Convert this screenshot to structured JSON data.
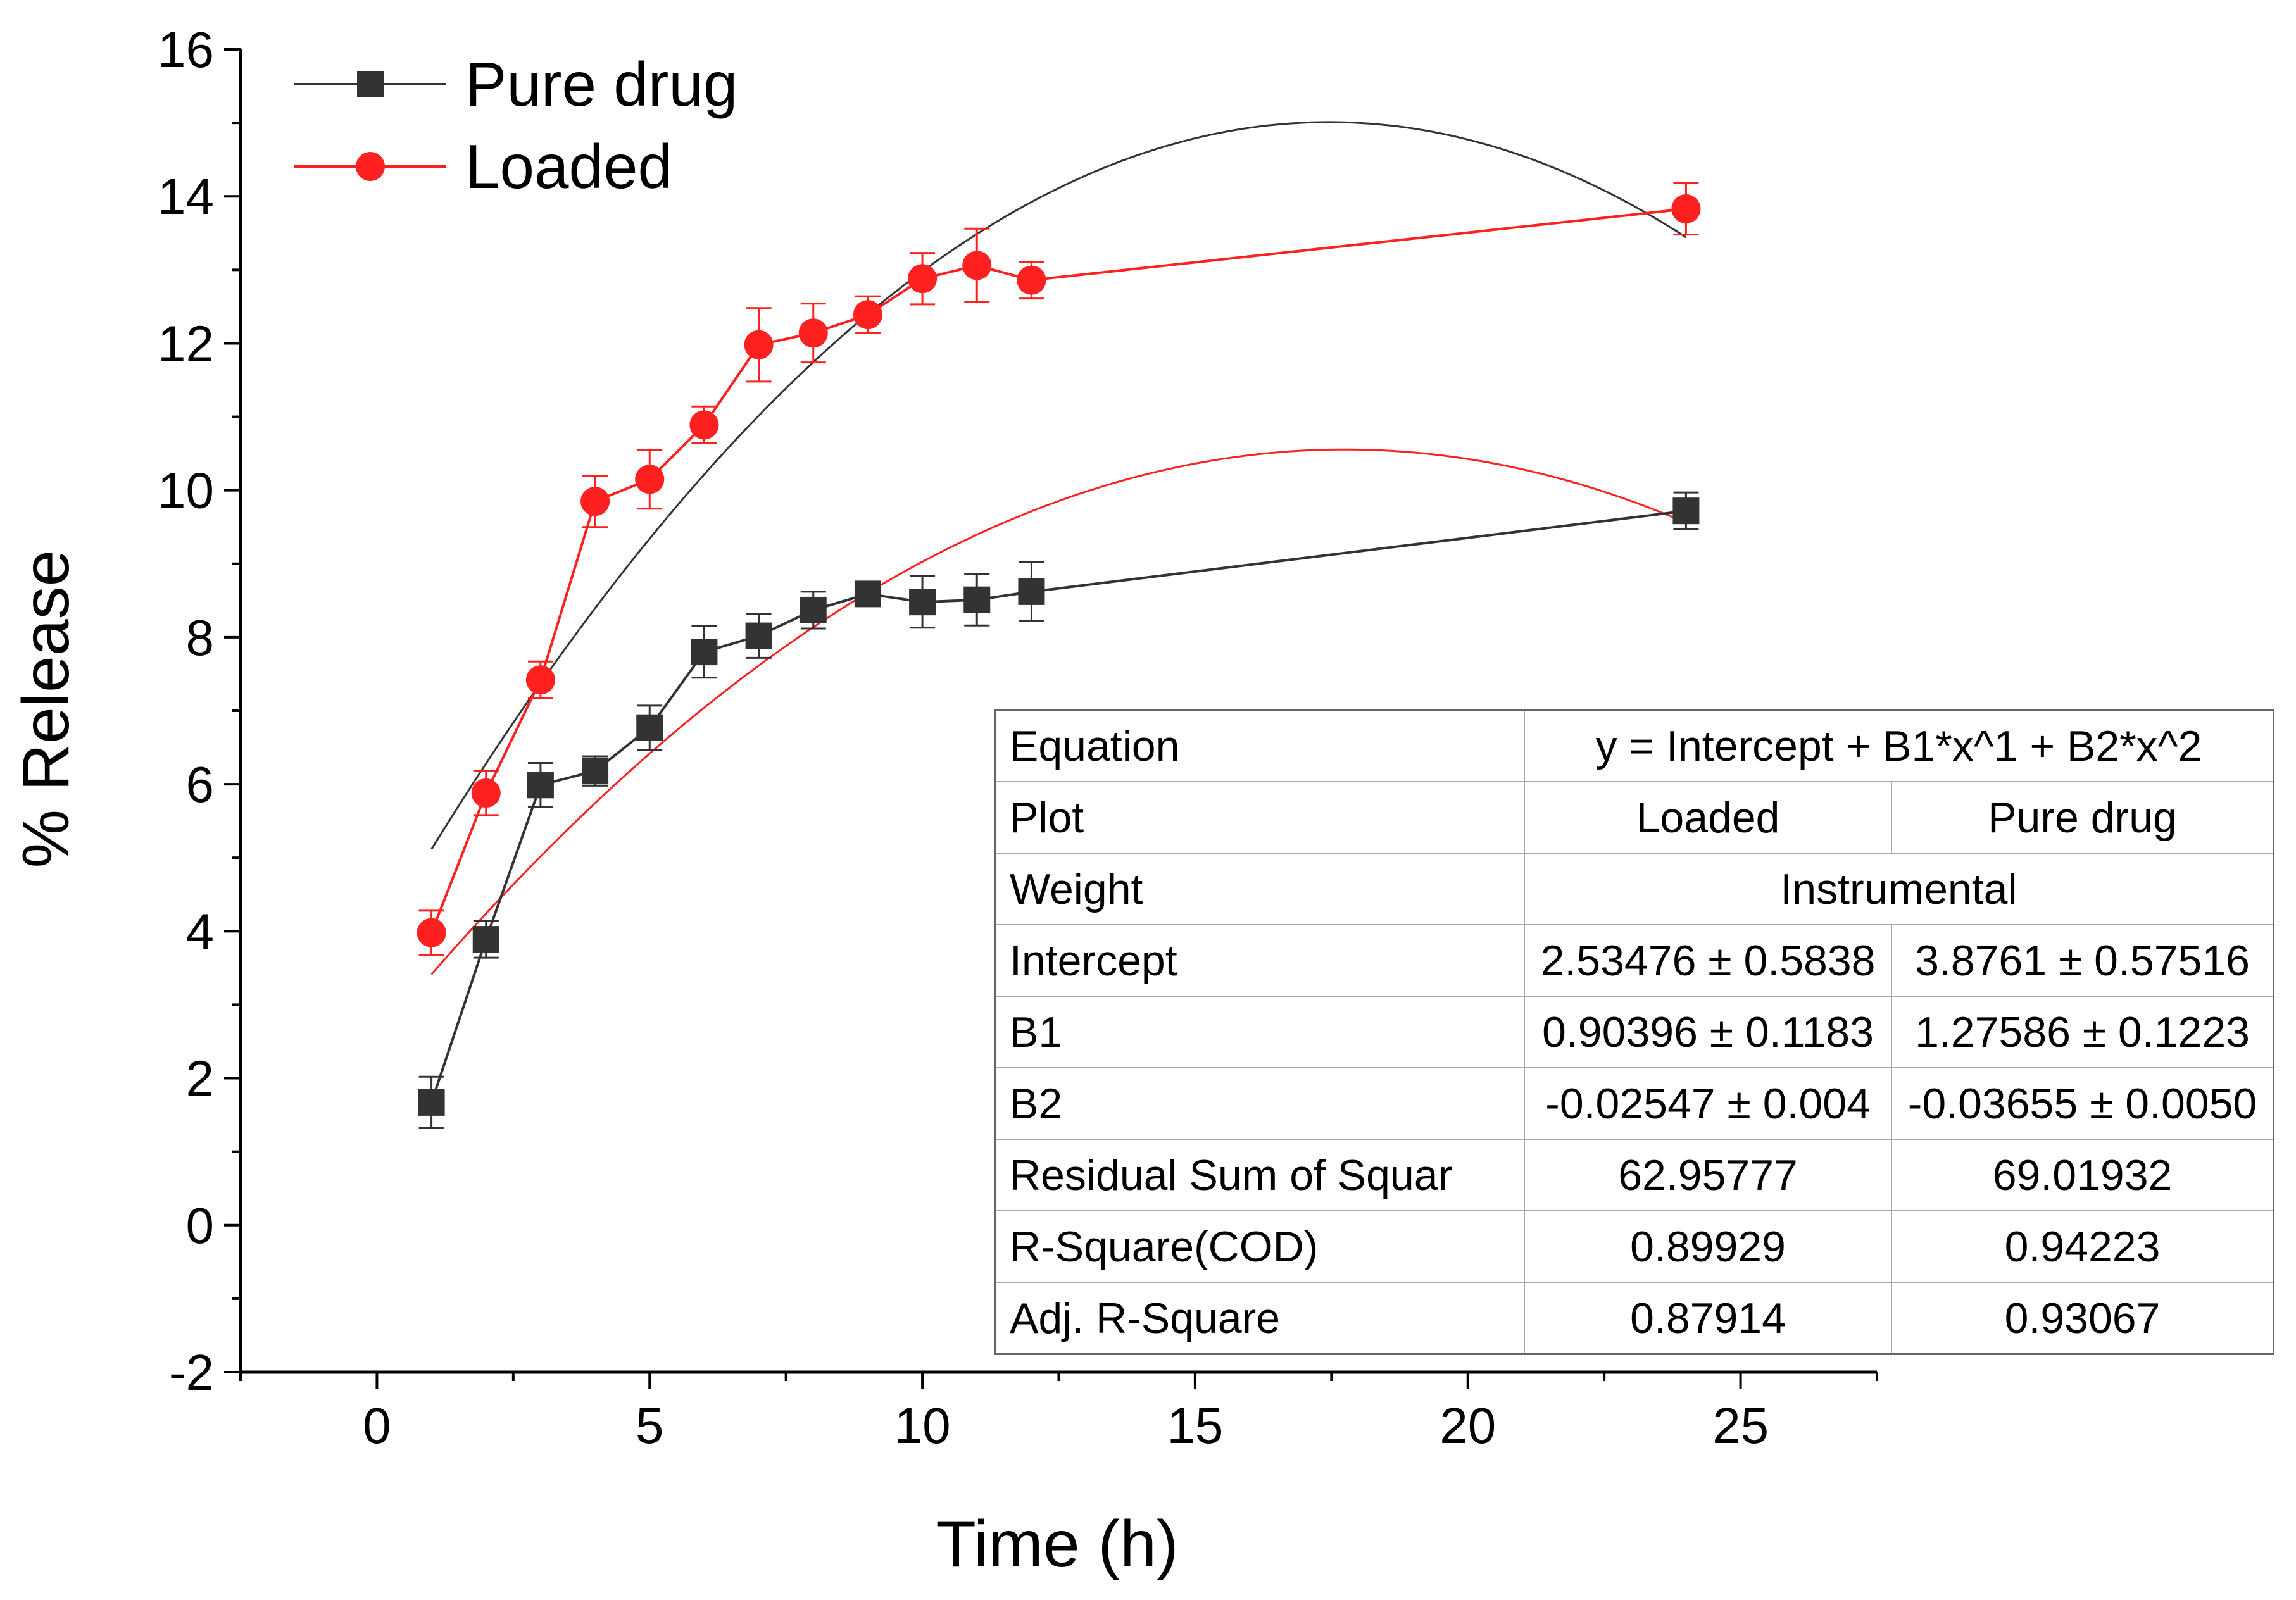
{
  "chart_data": {
    "type": "scatter",
    "title": "",
    "xlabel": "Time (h)",
    "ylabel": "% Release",
    "xlim": [
      -2.5,
      27.5
    ],
    "ylim": [
      -2,
      16
    ],
    "xticks": [
      0,
      5,
      10,
      15,
      20,
      25
    ],
    "yticks": [
      -2,
      0,
      2,
      4,
      6,
      8,
      10,
      12,
      14,
      16
    ],
    "legend_position": "top-left",
    "series": [
      {
        "name": "Pure drug",
        "color": "#333333",
        "marker": "square",
        "x": [
          1,
          2,
          3,
          4,
          5,
          6,
          7,
          8,
          9,
          10,
          11,
          12,
          24
        ],
        "y": [
          1.67,
          3.89,
          5.99,
          6.18,
          6.77,
          7.8,
          8.02,
          8.37,
          8.59,
          8.48,
          8.51,
          8.62,
          9.72
        ],
        "err": [
          0.35,
          0.25,
          0.3,
          0.2,
          0.3,
          0.35,
          0.3,
          0.25,
          0.15,
          0.35,
          0.35,
          0.4,
          0.25
        ],
        "fit": {
          "intercept": 3.8761,
          "b1": 1.27586,
          "b2": -0.03655,
          "x_range": [
            1,
            24
          ]
        }
      },
      {
        "name": "Loaded",
        "color": "#ff2020",
        "marker": "circle",
        "x": [
          1,
          2,
          3,
          4,
          5,
          6,
          7,
          8,
          9,
          10,
          11,
          12,
          24
        ],
        "y": [
          3.98,
          5.88,
          7.42,
          9.85,
          10.15,
          10.89,
          11.98,
          12.14,
          12.39,
          12.88,
          13.06,
          12.86,
          13.83
        ],
        "err": [
          0.3,
          0.3,
          0.25,
          0.35,
          0.4,
          0.25,
          0.5,
          0.4,
          0.25,
          0.35,
          0.5,
          0.25,
          0.35
        ],
        "fit": {
          "intercept": 2.53476,
          "b1": 0.90396,
          "b2": -0.02547,
          "x_range": [
            1,
            24
          ]
        }
      }
    ],
    "fit_table": {
      "rows": [
        {
          "label": "Equation",
          "span": "y = Intercept + B1*x^1 + B2*x^2"
        },
        {
          "label": "Plot",
          "loaded": "Loaded",
          "pure": "Pure drug"
        },
        {
          "label": "Weight",
          "span": "Instrumental"
        },
        {
          "label": "Intercept",
          "loaded": "2.53476 ± 0.5838",
          "pure": "3.8761 ± 0.57516"
        },
        {
          "label": "B1",
          "loaded": "0.90396 ± 0.1183",
          "pure": "1.27586 ± 0.1223"
        },
        {
          "label": "B2",
          "loaded": "-0.02547 ± 0.004",
          "pure": "-0.03655 ± 0.0050"
        },
        {
          "label": "Residual Sum of Squar",
          "loaded": "62.95777",
          "pure": "69.01932"
        },
        {
          "label": "R-Square(COD)",
          "loaded": "0.89929",
          "pure": "0.94223"
        },
        {
          "label": "Adj. R-Square",
          "loaded": "0.87914",
          "pure": "0.93067"
        }
      ]
    }
  }
}
